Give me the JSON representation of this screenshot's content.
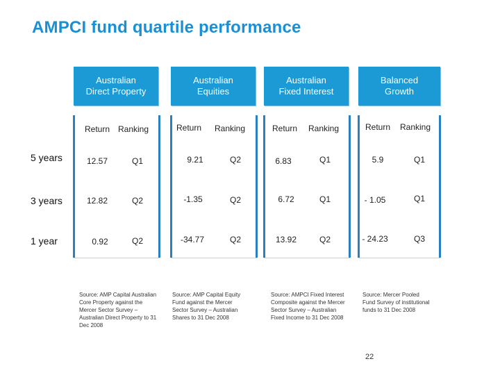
{
  "title": "AMPCI fund quartile performance",
  "columns": [
    {
      "header": "Australian\nDirect Property",
      "return_label": "Return",
      "ranking_label": "Ranking",
      "source": "Source: AMP Capital Australian Core Property against the Mercer Sector Survey – Australian Direct Property to 31 Dec 2008"
    },
    {
      "header": "Australian\nEquities",
      "return_label": "Return",
      "ranking_label": "Ranking",
      "source": "Source: AMP Capital Equity Fund against the Mercer Sector Survey – Australian Shares to 31 Dec 2008"
    },
    {
      "header": "Australian\nFixed Interest",
      "return_label": "Return",
      "ranking_label": "Ranking",
      "source": "Source: AMPCI Fixed Interest Composite against the Mercer Sector Survey – Australian Fixed Income to 31 Dec 2008"
    },
    {
      "header": "Balanced\nGrowth",
      "return_label": "Return",
      "ranking_label": "Ranking",
      "source": "Source: Mercer Pooled Fund Survey of institutional funds to 31 Dec 2008"
    }
  ],
  "rows": [
    {
      "label": "5 years",
      "cells": [
        [
          "12.57",
          "Q1"
        ],
        [
          "9.21",
          "Q2"
        ],
        [
          "6.83",
          "Q1"
        ],
        [
          "5.9",
          "Q1"
        ]
      ]
    },
    {
      "label": "3 years",
      "cells": [
        [
          "12.82",
          "Q2"
        ],
        [
          "-1.35",
          "Q2"
        ],
        [
          "6.72",
          "Q1"
        ],
        [
          "- 1.05",
          "Q1"
        ]
      ]
    },
    {
      "label": "1 year",
      "cells": [
        [
          "0.92",
          "Q2"
        ],
        [
          "-34.77",
          "Q2"
        ],
        [
          "13.92",
          "Q2"
        ],
        [
          "- 24.23",
          "Q3"
        ]
      ]
    }
  ],
  "page_number": "22"
}
